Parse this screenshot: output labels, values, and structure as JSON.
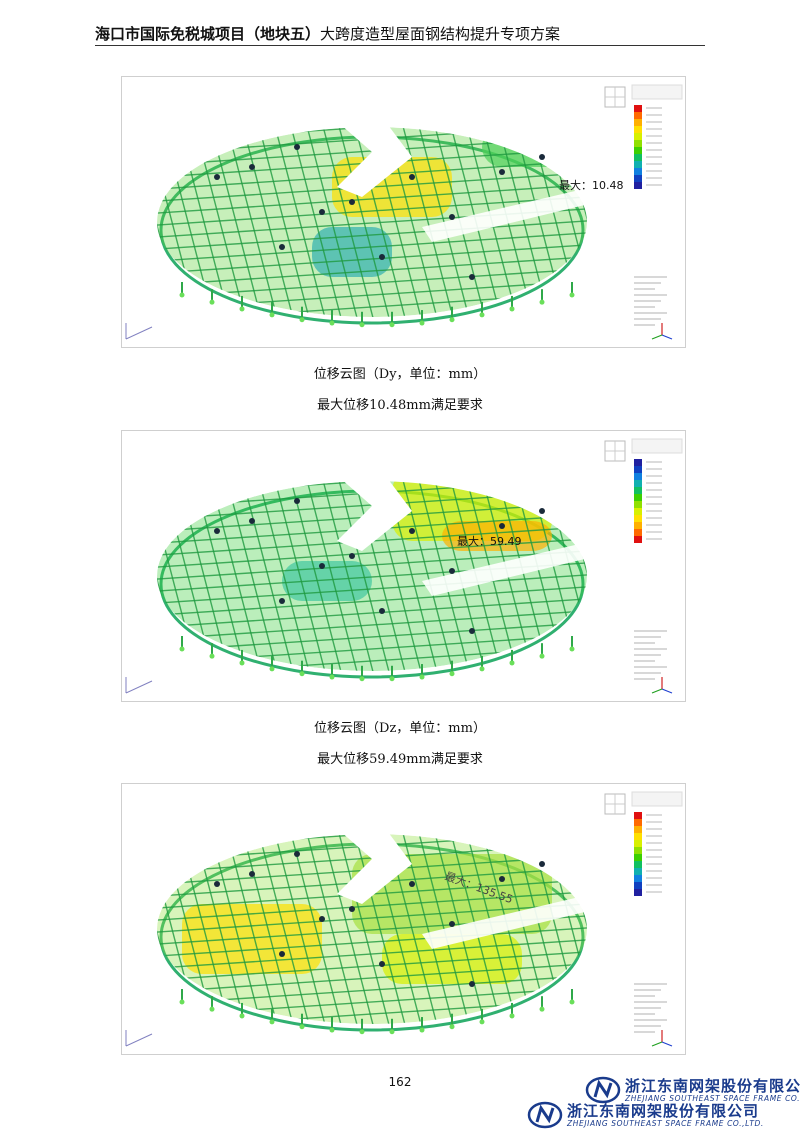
{
  "header": {
    "title_bold": "海口市国际免税城项目（地块五）",
    "title_rest": "大跨度造型屋面钢结构提升专项方案"
  },
  "figures": [
    {
      "max_label": "最大：10.48",
      "caption_line1": "位移云图（Dy，单位：mm）",
      "caption_line2": "最大位移10.48mm满足要求"
    },
    {
      "max_label": "最大：59.49",
      "caption_line1": "位移云图（Dz，单位：mm）",
      "caption_line2": "最大位移59.49mm满足要求"
    },
    {
      "max_label": "最大：135.55",
      "caption_line1": "",
      "caption_line2": ""
    }
  ],
  "legend_palettes": [
    [
      "#e01010",
      "#ff6a00",
      "#ffb000",
      "#ffe000",
      "#d8f000",
      "#90e000",
      "#3cd000",
      "#10c060",
      "#10b0b0",
      "#1080e0",
      "#1040c0",
      "#2020a0"
    ],
    [
      "#2020a0",
      "#1040c0",
      "#1080e0",
      "#10b0b0",
      "#10c060",
      "#3cd000",
      "#90e000",
      "#d8f000",
      "#ffe000",
      "#ffb000",
      "#ff6a00",
      "#e01010"
    ],
    [
      "#e01010",
      "#ff6a00",
      "#ffb000",
      "#ffe000",
      "#d8f000",
      "#90e000",
      "#3cd000",
      "#10c060",
      "#10b0b0",
      "#1080e0",
      "#1040c0",
      "#2020a0"
    ]
  ],
  "page_number": "162",
  "company": {
    "name": "浙江东南网架股份有限公司",
    "name_en": "ZHEJIANG SOUTHEAST SPACE FRAME CO.,LTD."
  }
}
